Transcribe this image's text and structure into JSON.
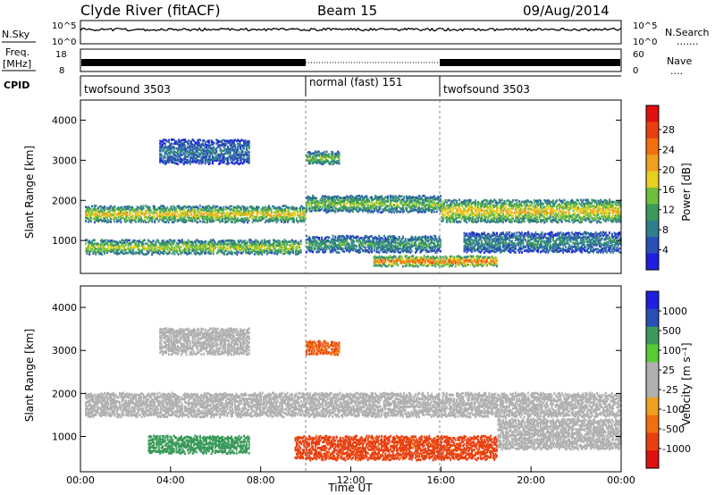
{
  "header": {
    "station": "Clyde River (fitACF)",
    "beam": "Beam 15",
    "date": "09/Aug/2014"
  },
  "strip_panels": {
    "nsky_label": "N.Sky",
    "nsearch_label": "N.Search",
    "freq_label_top": "Freq.",
    "freq_label_unit": "[MHz]",
    "nave_label": "Nave",
    "cpid_label": "CPID",
    "noise_ticks_left": [
      "10^5",
      "10^0"
    ],
    "noise_ticks_right": [
      "10^5",
      "10^0"
    ],
    "freq_ticks_left": [
      "18",
      "8"
    ],
    "nave_ticks_right": [
      "60",
      "0"
    ],
    "cpid_segments": [
      {
        "label": "twofsound 3503",
        "start_hour": 0,
        "end_hour": 10
      },
      {
        "label": "normal (fast) 151",
        "start_hour": 10,
        "end_hour": 16
      },
      {
        "label": "twofsound 3503",
        "start_hour": 16,
        "end_hour": 24
      }
    ]
  },
  "colors": {
    "power_scale": [
      "#1f1fe0",
      "#2a4fb5",
      "#2f7f8f",
      "#3a9a5a",
      "#6fbf3a",
      "#e8d020",
      "#f0a020",
      "#f07010",
      "#e84010",
      "#e01010"
    ],
    "velocity_scale": [
      "#e01010",
      "#e84010",
      "#f07010",
      "#f0a020",
      "#b0b0b0",
      "#b0b0b0",
      "#55cc33",
      "#3a9a5a",
      "#2a4fb5",
      "#1f1fe0"
    ]
  },
  "chart_data": [
    {
      "type": "heatmap",
      "name": "power",
      "xlabel": "",
      "ylabel": "Slant Range [km]",
      "xlim": [
        0,
        24
      ],
      "ylim": [
        180,
        4500
      ],
      "y_ticks": [
        "1000",
        "2000",
        "3000",
        "4000"
      ],
      "colorbar_label": "Power [dB]",
      "colorbar_ticks": [
        "4",
        "8",
        "12",
        "16",
        "20",
        "24",
        "28"
      ],
      "bands": [
        {
          "t0": 0.2,
          "t1": 10.0,
          "r0": 1450,
          "r1": 1850,
          "level": 18
        },
        {
          "t0": 0.2,
          "t1": 9.8,
          "r0": 650,
          "r1": 1000,
          "level": 16
        },
        {
          "t0": 3.5,
          "t1": 7.5,
          "r0": 2900,
          "r1": 3500,
          "level": 6
        },
        {
          "t0": 10.0,
          "t1": 16.0,
          "r0": 1700,
          "r1": 2100,
          "level": 14
        },
        {
          "t0": 10.0,
          "t1": 11.5,
          "r0": 2900,
          "r1": 3200,
          "level": 14
        },
        {
          "t0": 10.0,
          "t1": 16.0,
          "r0": 700,
          "r1": 1100,
          "level": 10
        },
        {
          "t0": 13.0,
          "t1": 18.5,
          "r0": 350,
          "r1": 600,
          "level": 26
        },
        {
          "t0": 16.0,
          "t1": 24.0,
          "r0": 1450,
          "r1": 2000,
          "level": 18
        },
        {
          "t0": 17.0,
          "t1": 24.0,
          "r0": 700,
          "r1": 1200,
          "level": 8
        }
      ]
    },
    {
      "type": "heatmap",
      "name": "velocity",
      "xlabel": "Time UT",
      "ylabel": "Slant Range [km]",
      "xlim": [
        0,
        24
      ],
      "ylim": [
        180,
        4500
      ],
      "x_ticks": [
        "00:00",
        "04:00",
        "08:00",
        "12:00",
        "16:00",
        "20:00",
        "00:00"
      ],
      "y_ticks": [
        "1000",
        "2000",
        "3000",
        "4000"
      ],
      "colorbar_label": "Velocity [m s⁻¹]",
      "colorbar_ticks": [
        "1000",
        "500",
        "100",
        "25",
        "-25",
        "-100",
        "-500",
        "-1000"
      ],
      "bands": [
        {
          "t0": 0.2,
          "t1": 24.0,
          "r0": 1450,
          "r1": 2000,
          "level": 0
        },
        {
          "t0": 3.0,
          "t1": 7.5,
          "r0": 600,
          "r1": 1000,
          "level": 300
        },
        {
          "t0": 9.5,
          "t1": 18.5,
          "r0": 450,
          "r1": 1000,
          "level": -300
        },
        {
          "t0": 3.5,
          "t1": 7.5,
          "r0": 2900,
          "r1": 3500,
          "level": 0
        },
        {
          "t0": 10.0,
          "t1": 11.5,
          "r0": 2900,
          "r1": 3200,
          "level": -200
        },
        {
          "t0": 18.5,
          "t1": 24.0,
          "r0": 700,
          "r1": 1400,
          "level": 0
        }
      ]
    }
  ]
}
